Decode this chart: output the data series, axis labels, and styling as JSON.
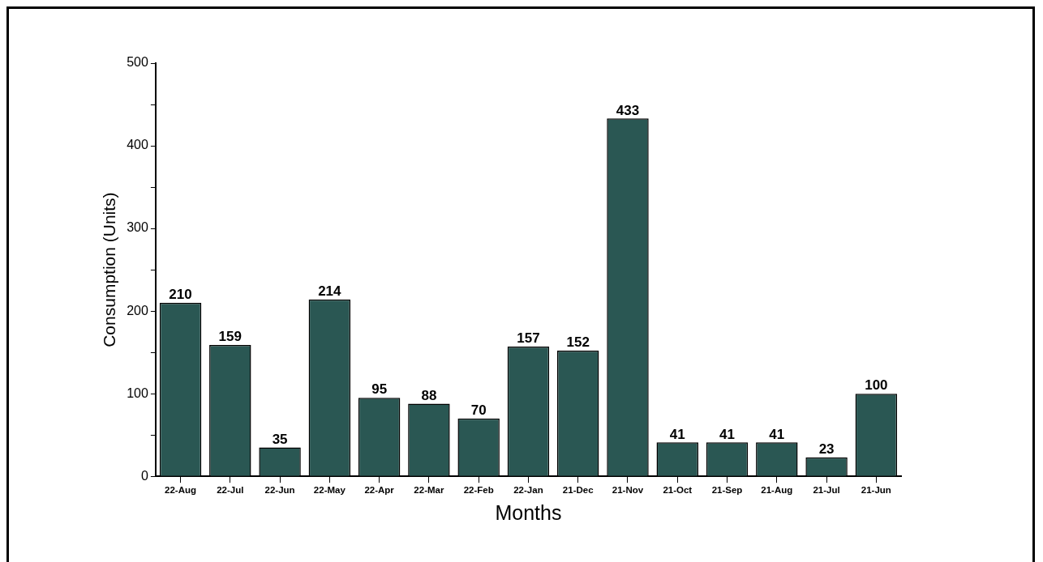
{
  "chart_data": {
    "type": "bar",
    "xlabel": "Months",
    "ylabel": "Consumption (Units)",
    "categories": [
      "22-Aug",
      "22-Jul",
      "22-Jun",
      "22-May",
      "22-Apr",
      "22-Mar",
      "22-Feb",
      "22-Jan",
      "21-Dec",
      "21-Nov",
      "21-Oct",
      "21-Sep",
      "21-Aug",
      "21-Jul",
      "21-Jun"
    ],
    "values": [
      210,
      159,
      35,
      214,
      95,
      88,
      70,
      157,
      152,
      433,
      41,
      41,
      41,
      23,
      100
    ],
    "color": "#2a5753",
    "ylim": [
      0,
      500
    ],
    "yticks": [
      0,
      {
        "value": 50,
        "label": null
      },
      100,
      {
        "value": 150,
        "label": null
      },
      200,
      {
        "value": 250,
        "label": null
      },
      300,
      {
        "value": 350,
        "label": null
      },
      400,
      {
        "value": 450,
        "label": null
      },
      500
    ],
    "grid": false,
    "legend": false,
    "data_labels": true
  }
}
